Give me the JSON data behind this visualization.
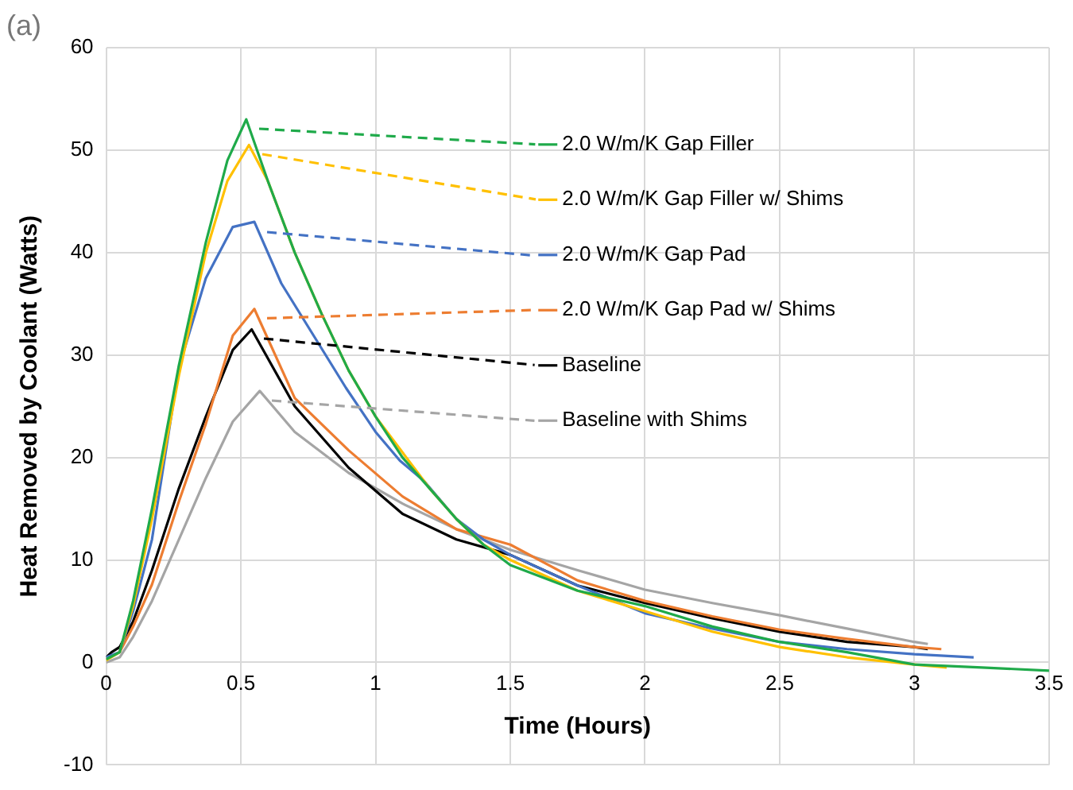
{
  "chart_data": {
    "type": "line",
    "xlabel": "Time (Hours)",
    "ylabel": "Heat Removed by Coolant (Watts)",
    "annotations": [
      "(a)"
    ],
    "xlim": [
      0,
      3.5
    ],
    "xticks": [
      0,
      0.5,
      1,
      1.5,
      2,
      2.5,
      3,
      3.5
    ],
    "ylim": [
      -10,
      60
    ],
    "yticks": [
      -10,
      0,
      10,
      20,
      30,
      40,
      50,
      60
    ],
    "grid": true,
    "legend": "top",
    "marker": "none",
    "line_style": "solid",
    "series": [
      {
        "name": "2.0 W/m/K Gap Filler",
        "color": "#1faa4a",
        "x": [
          0,
          0.05,
          0.1,
          0.17,
          0.27,
          0.37,
          0.45,
          0.52,
          0.6,
          0.7,
          0.8,
          0.9,
          1.0,
          1.1,
          1.2,
          1.3,
          1.4,
          1.5,
          1.75,
          2.0,
          2.25,
          2.5,
          2.75,
          3.0,
          3.25,
          3.5
        ],
        "values": [
          0.3,
          1,
          6,
          15,
          29,
          41,
          49,
          53,
          47,
          40,
          34,
          28.5,
          24,
          20,
          17,
          14,
          11.5,
          9.5,
          7,
          5.5,
          3.5,
          2,
          1,
          -0.2,
          -0.5,
          -0.8
        ]
      },
      {
        "name": "2.0 W/m/K Gap Filler w/ Shims",
        "color": "#ffc000",
        "x": [
          0,
          0.05,
          0.1,
          0.17,
          0.27,
          0.37,
          0.45,
          0.53,
          0.6,
          0.7,
          0.8,
          0.9,
          1.0,
          1.1,
          1.2,
          1.3,
          1.4,
          1.5,
          1.75,
          2.0,
          2.25,
          2.5,
          2.75,
          3.0,
          3.12
        ],
        "values": [
          0.2,
          1,
          5.5,
          14,
          28,
          40,
          47,
          50.5,
          47,
          40,
          34,
          28.5,
          24,
          20.5,
          17,
          14,
          11.5,
          10,
          7,
          5,
          3,
          1.5,
          0.5,
          -0.2,
          -0.5
        ]
      },
      {
        "name": "2.0 W/m/K Gap Pad",
        "color": "#4472c4",
        "x": [
          0,
          0.05,
          0.1,
          0.17,
          0.27,
          0.37,
          0.47,
          0.55,
          0.65,
          0.77,
          0.89,
          1.0,
          1.09,
          1.18,
          1.3,
          1.4,
          1.5,
          1.75,
          2.0,
          2.25,
          2.5,
          2.75,
          3.0,
          3.22
        ],
        "values": [
          0.5,
          1,
          5,
          12,
          28.8,
          37.5,
          42.5,
          43,
          37,
          31.9,
          26.8,
          22.5,
          19.7,
          17.7,
          14,
          12,
          10.5,
          7.5,
          4.8,
          3.3,
          2,
          1.3,
          0.8,
          0.5
        ]
      },
      {
        "name": "2.0 W/m/K Gap Pad w/ Shims",
        "color": "#ed7d31",
        "x": [
          0,
          0.05,
          0.1,
          0.17,
          0.27,
          0.37,
          0.47,
          0.55,
          0.7,
          0.9,
          1.1,
          1.3,
          1.5,
          1.75,
          2.0,
          2.25,
          2.5,
          2.75,
          3.0,
          3.1
        ],
        "values": [
          0.3,
          1,
          3.5,
          7.6,
          15.7,
          23.3,
          31.9,
          34.5,
          25.8,
          20.7,
          16.2,
          13,
          11.5,
          8,
          6,
          4.5,
          3.2,
          2.3,
          1.5,
          1.3
        ]
      },
      {
        "name": "Baseline",
        "color": "#000000",
        "x": [
          0,
          0.02,
          0.05,
          0.1,
          0.17,
          0.27,
          0.37,
          0.47,
          0.54,
          0.7,
          0.9,
          1.1,
          1.3,
          1.5,
          1.75,
          2.0,
          2.25,
          2.5,
          2.75,
          3.0,
          3.05
        ],
        "values": [
          0.5,
          1,
          1.5,
          4,
          9,
          17,
          24,
          30.5,
          32.5,
          25,
          19,
          14.5,
          12,
          10.5,
          7.5,
          5.8,
          4.3,
          3,
          2,
          1.5,
          1.3
        ]
      },
      {
        "name": "Baseline with Shims",
        "color": "#a5a5a5",
        "x": [
          0,
          0.05,
          0.1,
          0.17,
          0.27,
          0.37,
          0.47,
          0.57,
          0.7,
          0.9,
          1.1,
          1.3,
          1.5,
          1.75,
          2.0,
          2.25,
          2.5,
          2.75,
          3.0,
          3.05
        ],
        "values": [
          0,
          0.5,
          2.5,
          6,
          12,
          18,
          23.5,
          26.5,
          22.5,
          18.5,
          15.5,
          13,
          11,
          9,
          7.1,
          5.8,
          4.6,
          3.3,
          2,
          1.8
        ]
      }
    ]
  }
}
